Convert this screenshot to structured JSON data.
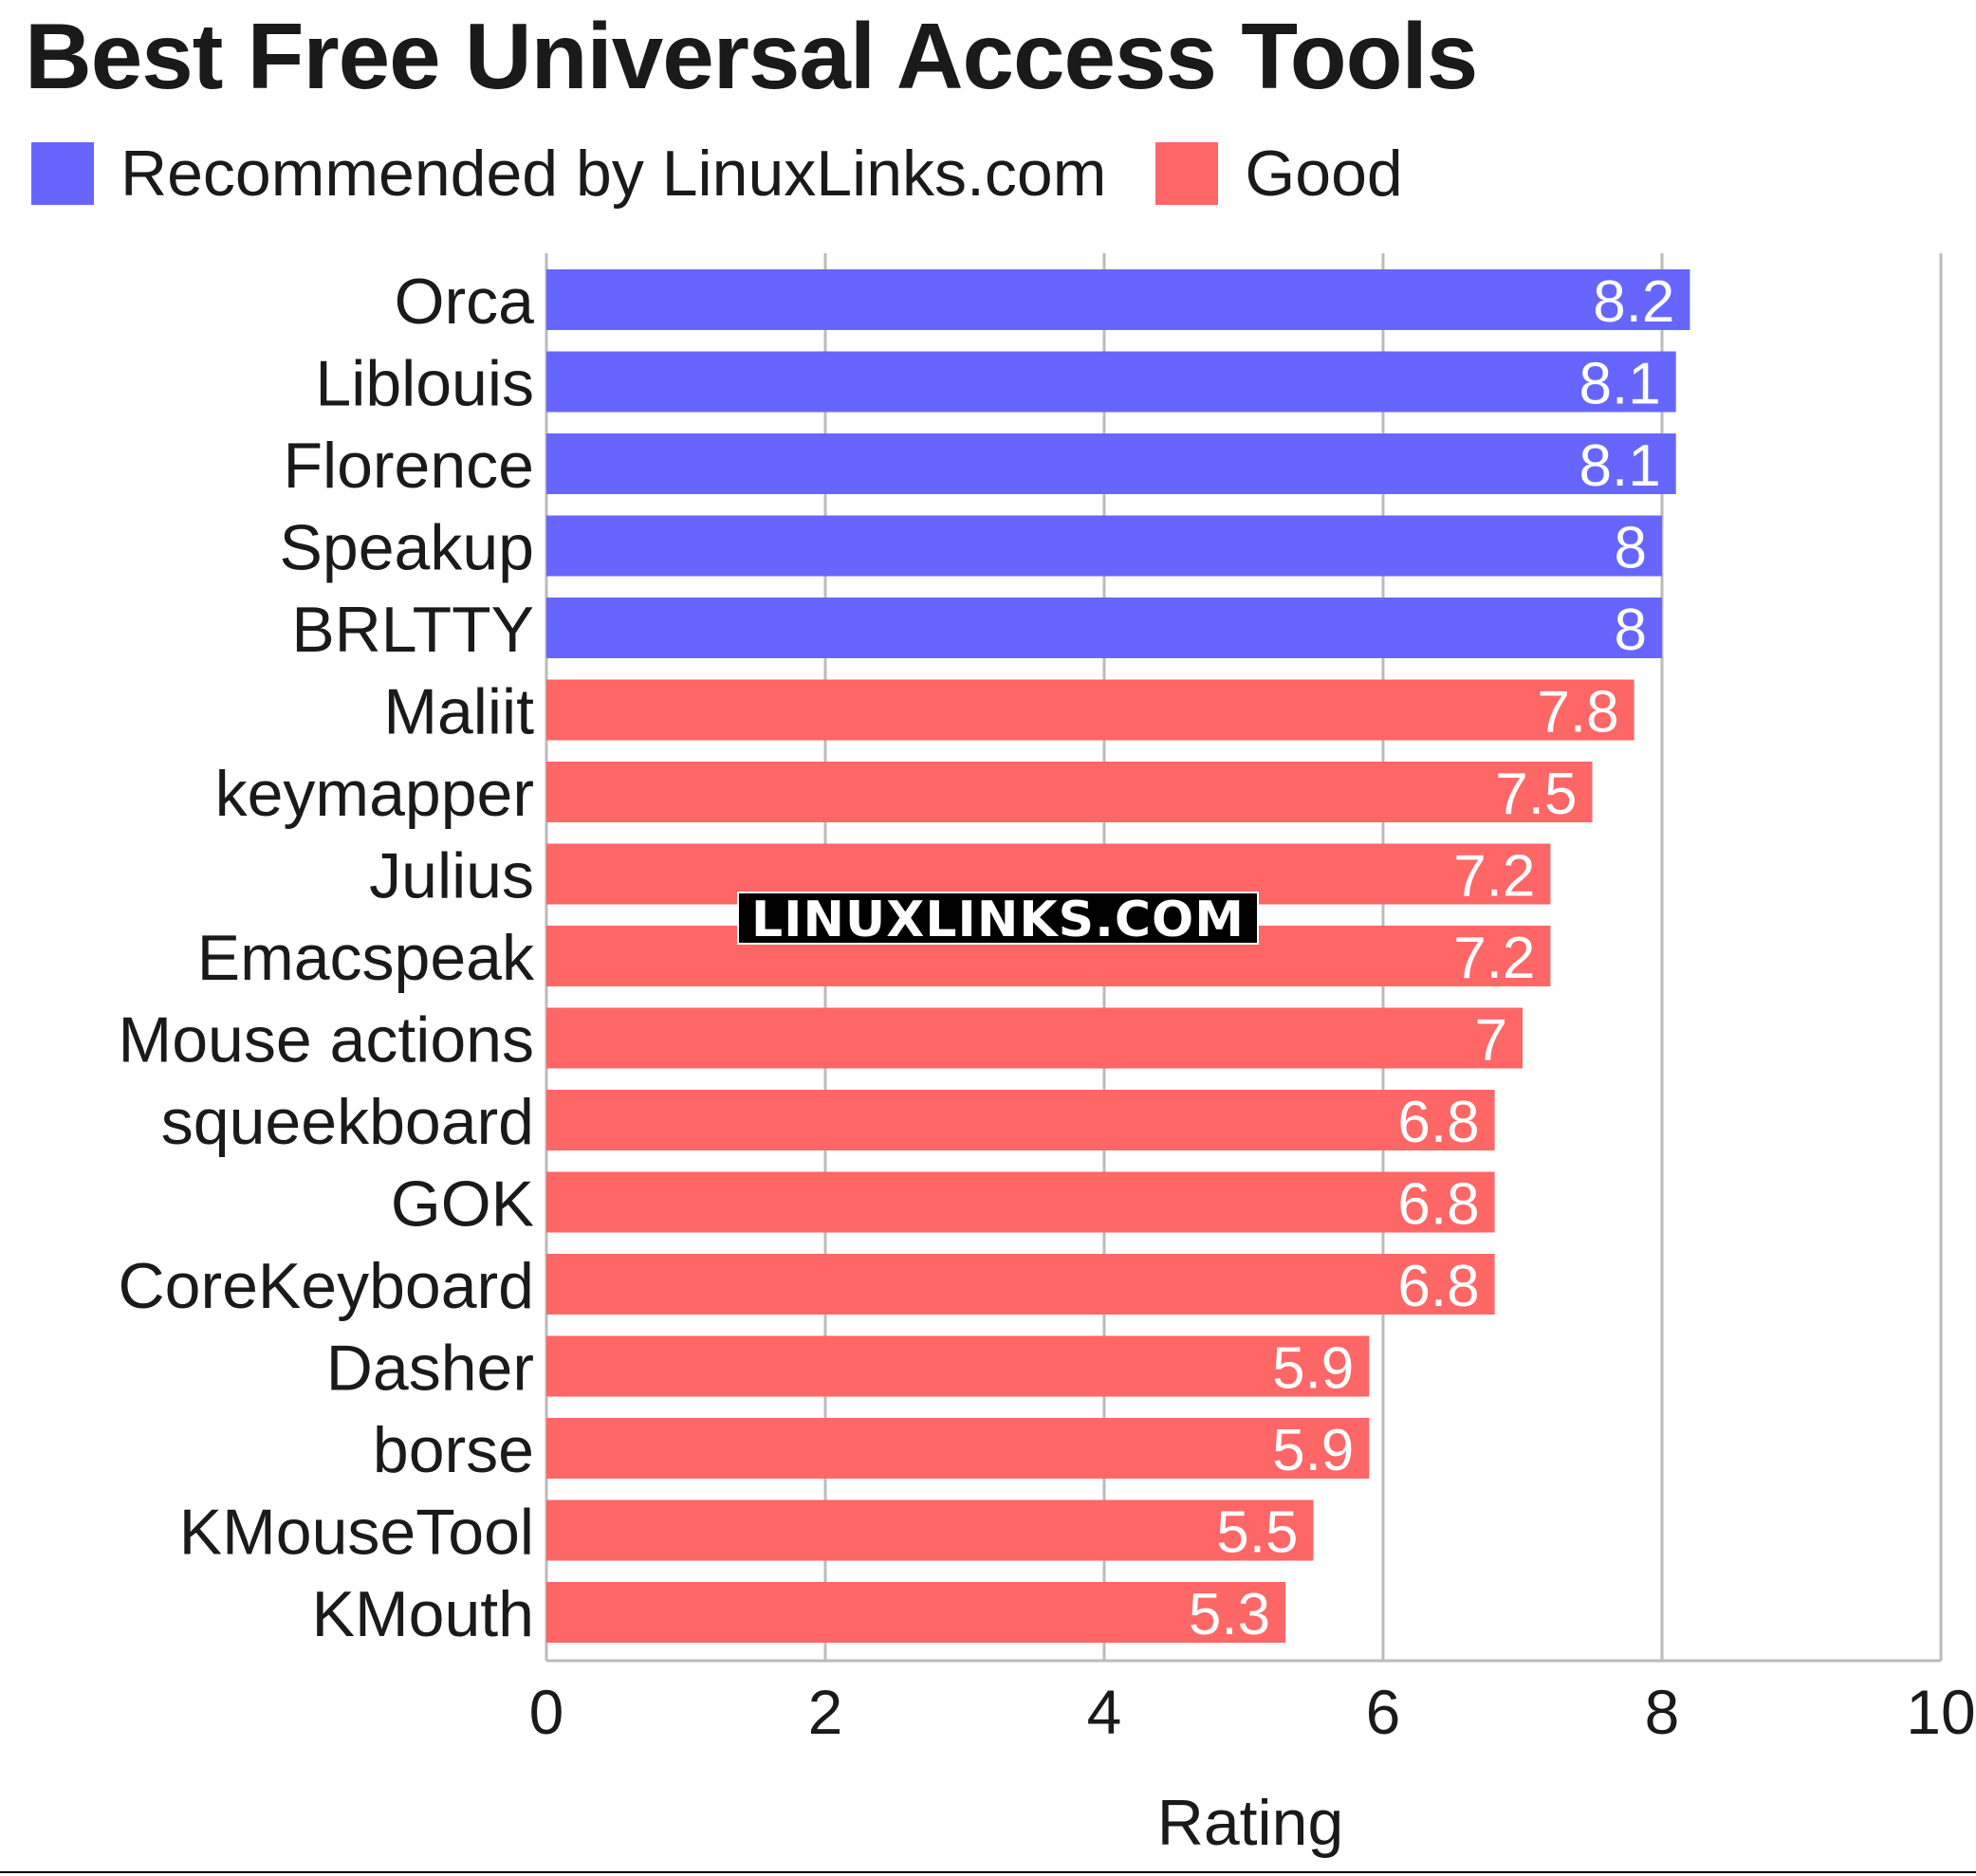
{
  "chart_data": {
    "type": "bar",
    "orientation": "horizontal",
    "title": "Best Free Universal Access Tools",
    "xlabel": "Rating",
    "ylabel": "",
    "xlim": [
      0,
      10
    ],
    "x_ticks": [
      "0",
      "2",
      "4",
      "6",
      "8",
      "10"
    ],
    "grid": "vertical",
    "legend_position": "top-left",
    "legend": [
      {
        "label": "Recommended by LinuxLinks.com",
        "color": "#6666ff"
      },
      {
        "label": "Good",
        "color": "#ff6666"
      }
    ],
    "categories": [
      "Orca",
      "Liblouis",
      "Florence",
      "Speakup",
      "BRLTTY",
      "Maliit",
      "keymapper",
      "Julius",
      "Emacspeak",
      "Mouse actions",
      "squeekboard",
      "GOK",
      "CoreKeyboard",
      "Dasher",
      "borse",
      "KMouseTool",
      "KMouth"
    ],
    "values": [
      8.2,
      8.1,
      8.1,
      8,
      8,
      7.8,
      7.5,
      7.2,
      7.2,
      7,
      6.8,
      6.8,
      6.8,
      5.9,
      5.9,
      5.5,
      5.3
    ],
    "value_labels": [
      "8.2",
      "8.1",
      "8.1",
      "8",
      "8",
      "7.8",
      "7.5",
      "7.2",
      "7.2",
      "7",
      "6.8",
      "6.8",
      "6.8",
      "5.9",
      "5.9",
      "5.5",
      "5.3"
    ],
    "groups": [
      "Recommended by LinuxLinks.com",
      "Recommended by LinuxLinks.com",
      "Recommended by LinuxLinks.com",
      "Recommended by LinuxLinks.com",
      "Recommended by LinuxLinks.com",
      "Good",
      "Good",
      "Good",
      "Good",
      "Good",
      "Good",
      "Good",
      "Good",
      "Good",
      "Good",
      "Good",
      "Good"
    ]
  },
  "watermark": "LINUXLINKS.COM",
  "colors": {
    "grid": "#bbbbbb",
    "text": "#1a1a1a",
    "value_label": "#ffffff"
  }
}
